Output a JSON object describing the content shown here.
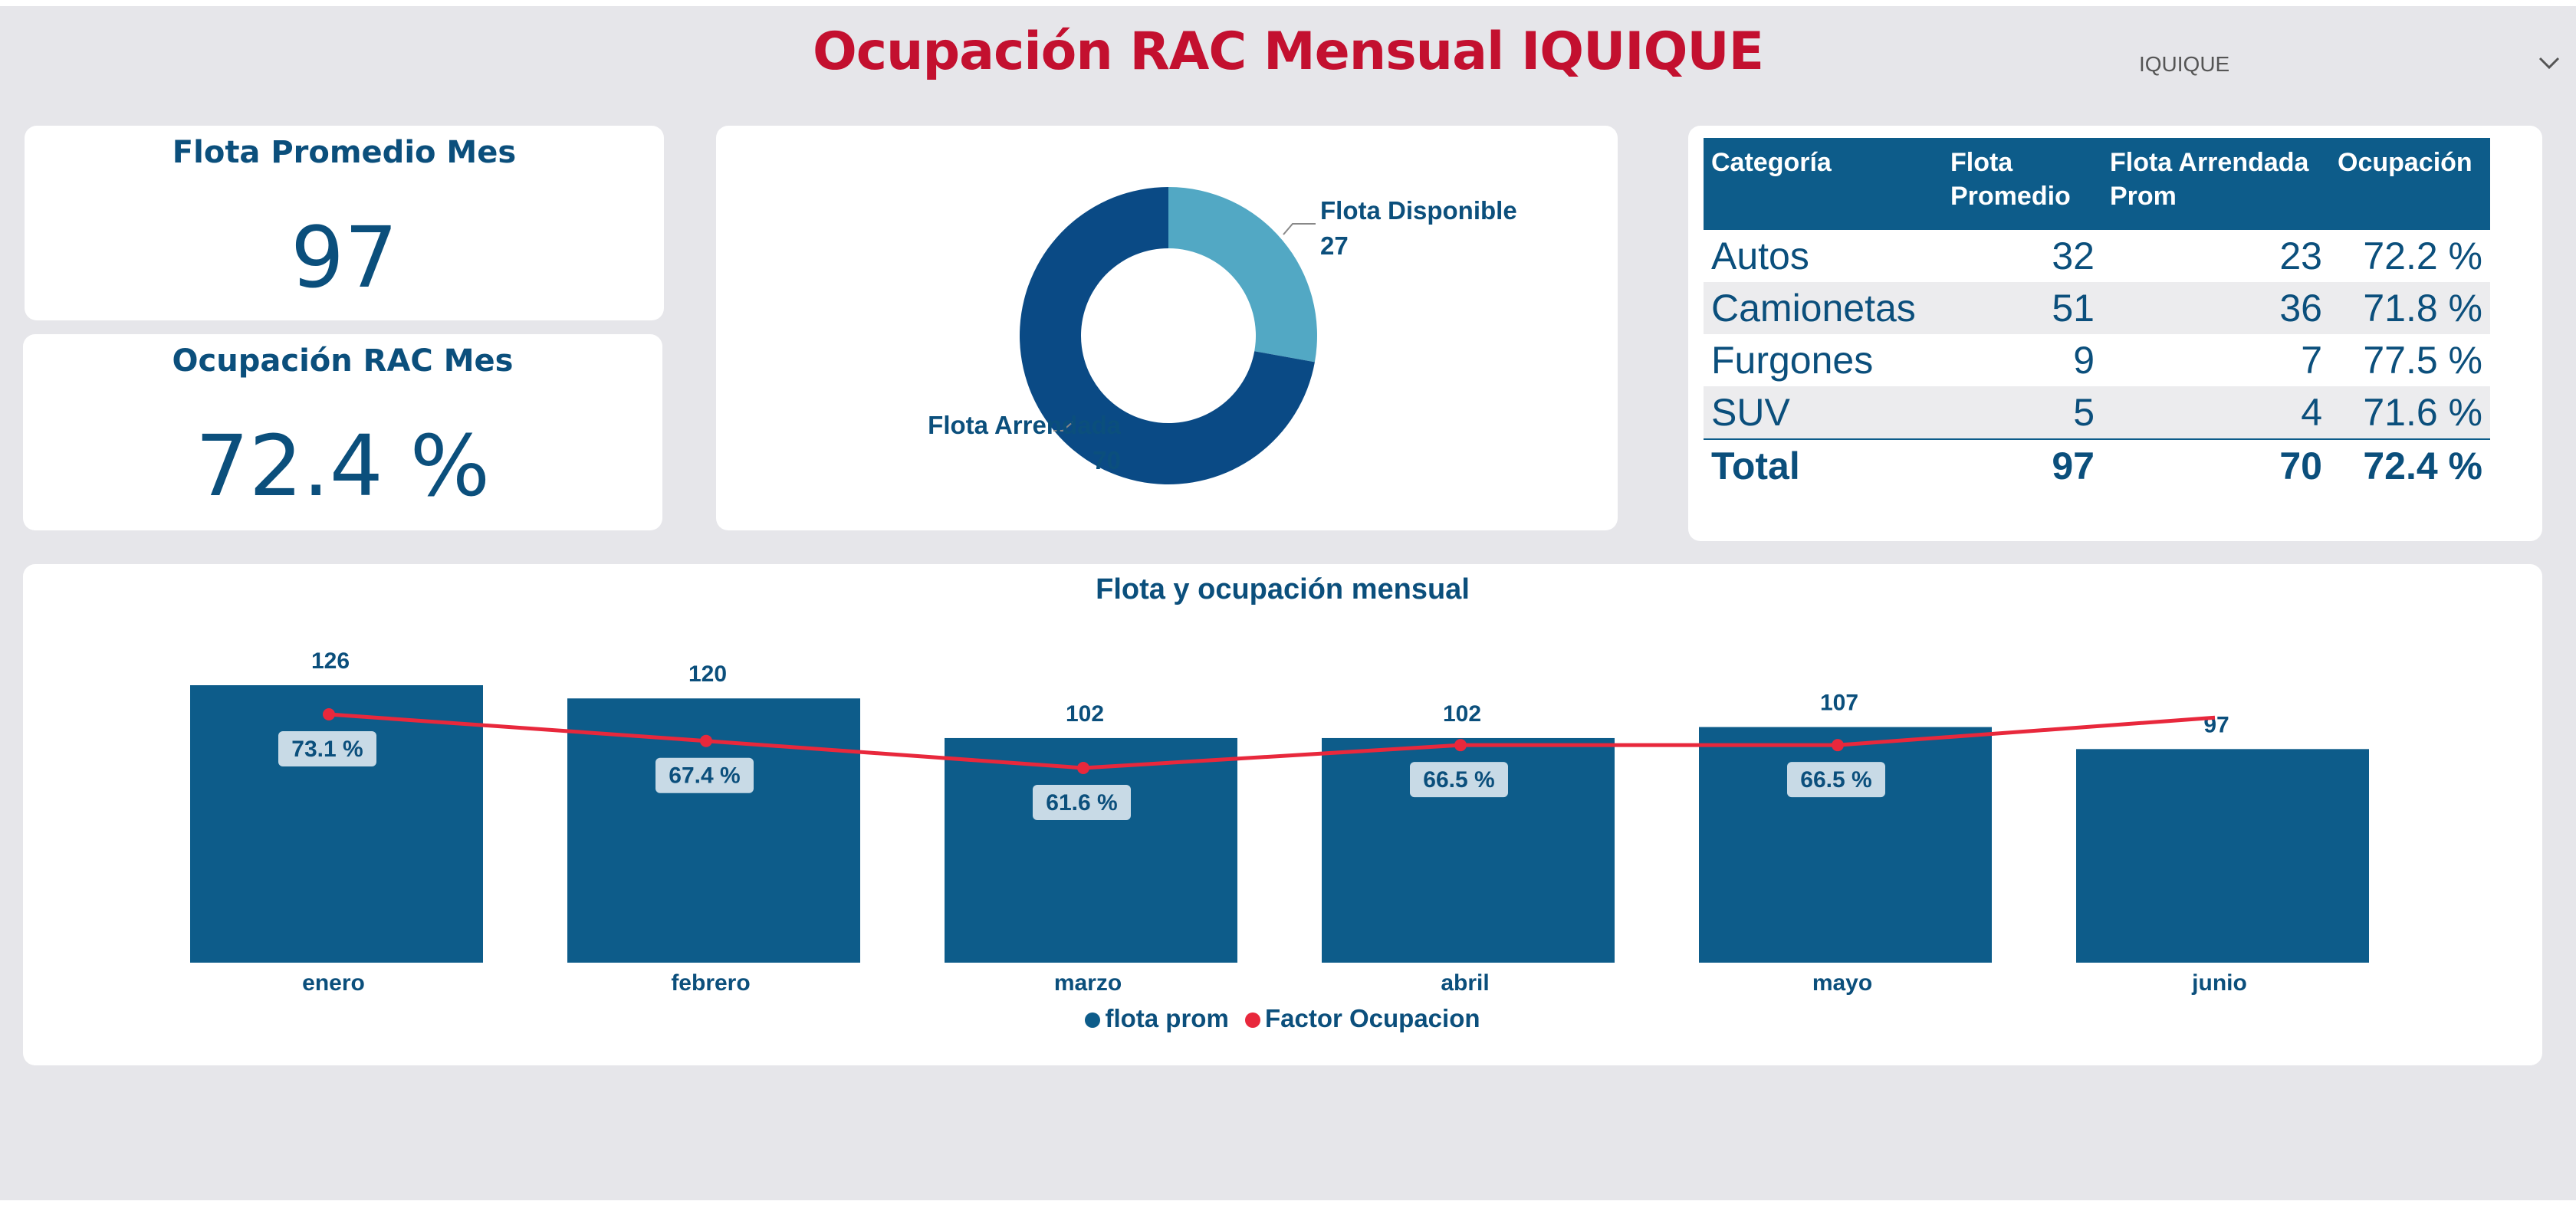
{
  "title": "Ocupación RAC Mensual IQUIQUE",
  "slicer": {
    "value": "IQUIQUE",
    "icon": "chevron-down-icon"
  },
  "kpis": {
    "flota": {
      "title": "Flota Promedio Mes",
      "value": "97"
    },
    "ocupacion": {
      "title": "Ocupación RAC Mes",
      "value": "72.4 %"
    }
  },
  "donut": {
    "slices": [
      {
        "label": "Flota Disponible",
        "value": 27,
        "display": "27",
        "color": "#52a8c4"
      },
      {
        "label": "Flota Arrendada",
        "value": 70,
        "display": "70",
        "color": "#0a4a85"
      }
    ]
  },
  "table": {
    "headers": [
      "Categoría",
      "Flota Promedio",
      "Flota Arrendada Prom",
      "Ocupación"
    ],
    "rows": [
      [
        "Autos",
        "32",
        "23",
        "72.2 %"
      ],
      [
        "Camionetas",
        "51",
        "36",
        "71.8 %"
      ],
      [
        "Furgones",
        "9",
        "7",
        "77.5 %"
      ],
      [
        "SUV",
        "5",
        "4",
        "71.6 %"
      ]
    ],
    "total": [
      "Total",
      "97",
      "70",
      "72.4 %"
    ]
  },
  "chart_data": {
    "type": "bar",
    "title": "Flota y ocupación mensual",
    "categories": [
      "enero",
      "febrero",
      "marzo",
      "abril",
      "mayo",
      "junio"
    ],
    "series": [
      {
        "name": "flota prom",
        "type": "bar",
        "color": "#0d5c8a",
        "values": [
          126,
          120,
          102,
          102,
          107,
          97
        ]
      },
      {
        "name": "Factor Ocupacion",
        "type": "line",
        "color": "#e8283c",
        "values": [
          73.1,
          67.4,
          61.6,
          66.5,
          66.5,
          72.4
        ],
        "labels": [
          "73.1 %",
          "67.4 %",
          "61.6 %",
          "66.5 %",
          "66.5 %",
          ""
        ]
      }
    ],
    "legend": "bottom-center"
  },
  "colors": {
    "brand_red": "#c3102f",
    "primary_blue": "#0d5c8a",
    "text_blue": "#0b4f7c"
  }
}
